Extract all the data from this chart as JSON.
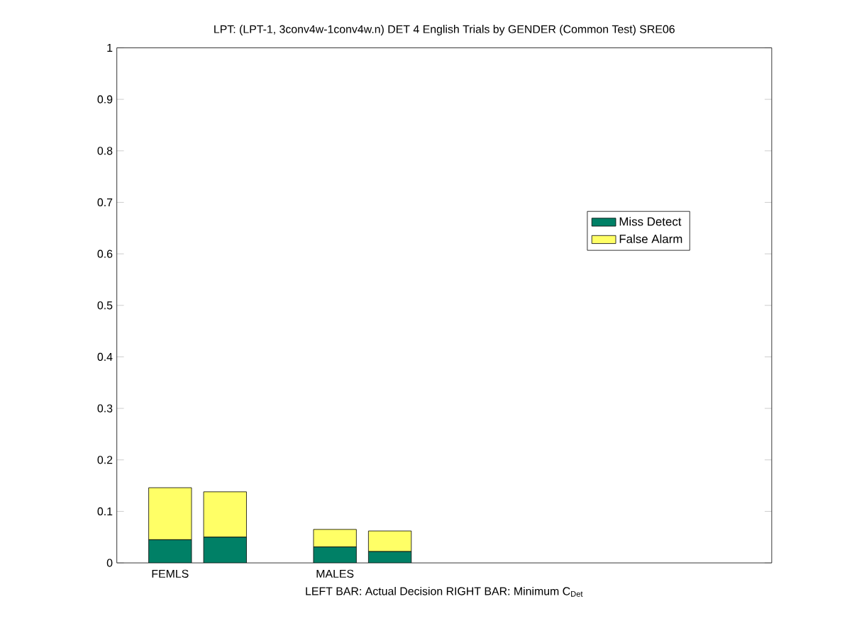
{
  "chart_data": {
    "type": "bar",
    "title": "LPT: (LPT-1, 3conv4w-1conv4w.n) DET 4 English Trials by GENDER (Common Test) SRE06",
    "xlabel": "LEFT BAR: Actual Decision     RIGHT BAR: Minimum C$_{Det}$",
    "categories": [
      "FEMLS",
      null,
      "MALES",
      null
    ],
    "stacked": true,
    "series": [
      {
        "name": "Miss Detect",
        "color": "#008066",
        "values": [
          0.045,
          0.05,
          0.031,
          0.022
        ]
      },
      {
        "name": "False Alarm",
        "color": "#ffff66",
        "values": [
          0.101,
          0.088,
          0.034,
          0.04
        ]
      }
    ],
    "ylim": [
      0,
      1
    ],
    "yticks": [
      0,
      0.1,
      0.2,
      0.3,
      0.4,
      0.5,
      0.6,
      0.7,
      0.8,
      0.9,
      1
    ],
    "legend": "right",
    "grid": false
  }
}
